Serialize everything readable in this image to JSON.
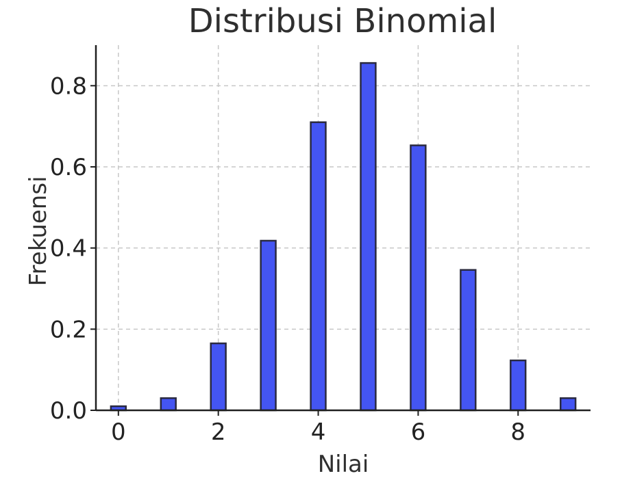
{
  "chart_data": {
    "type": "bar",
    "title": "Distribusi Binomial",
    "xlabel": "Nilai",
    "ylabel": "Frekuensi",
    "categories": [
      0,
      1,
      2,
      3,
      4,
      5,
      6,
      7,
      8,
      9
    ],
    "values": [
      0.01,
      0.03,
      0.165,
      0.418,
      0.71,
      0.856,
      0.653,
      0.346,
      0.123,
      0.03
    ],
    "x_ticks": [
      "0",
      "2",
      "4",
      "6",
      "8"
    ],
    "y_ticks": [
      "0.0",
      "0.2",
      "0.4",
      "0.6",
      "0.8"
    ],
    "xlim": [
      -0.45,
      9.45
    ],
    "ylim": [
      0,
      0.9
    ],
    "grid": true,
    "bar_color": "#4455f2",
    "edge_color": "#2a2a3f"
  }
}
